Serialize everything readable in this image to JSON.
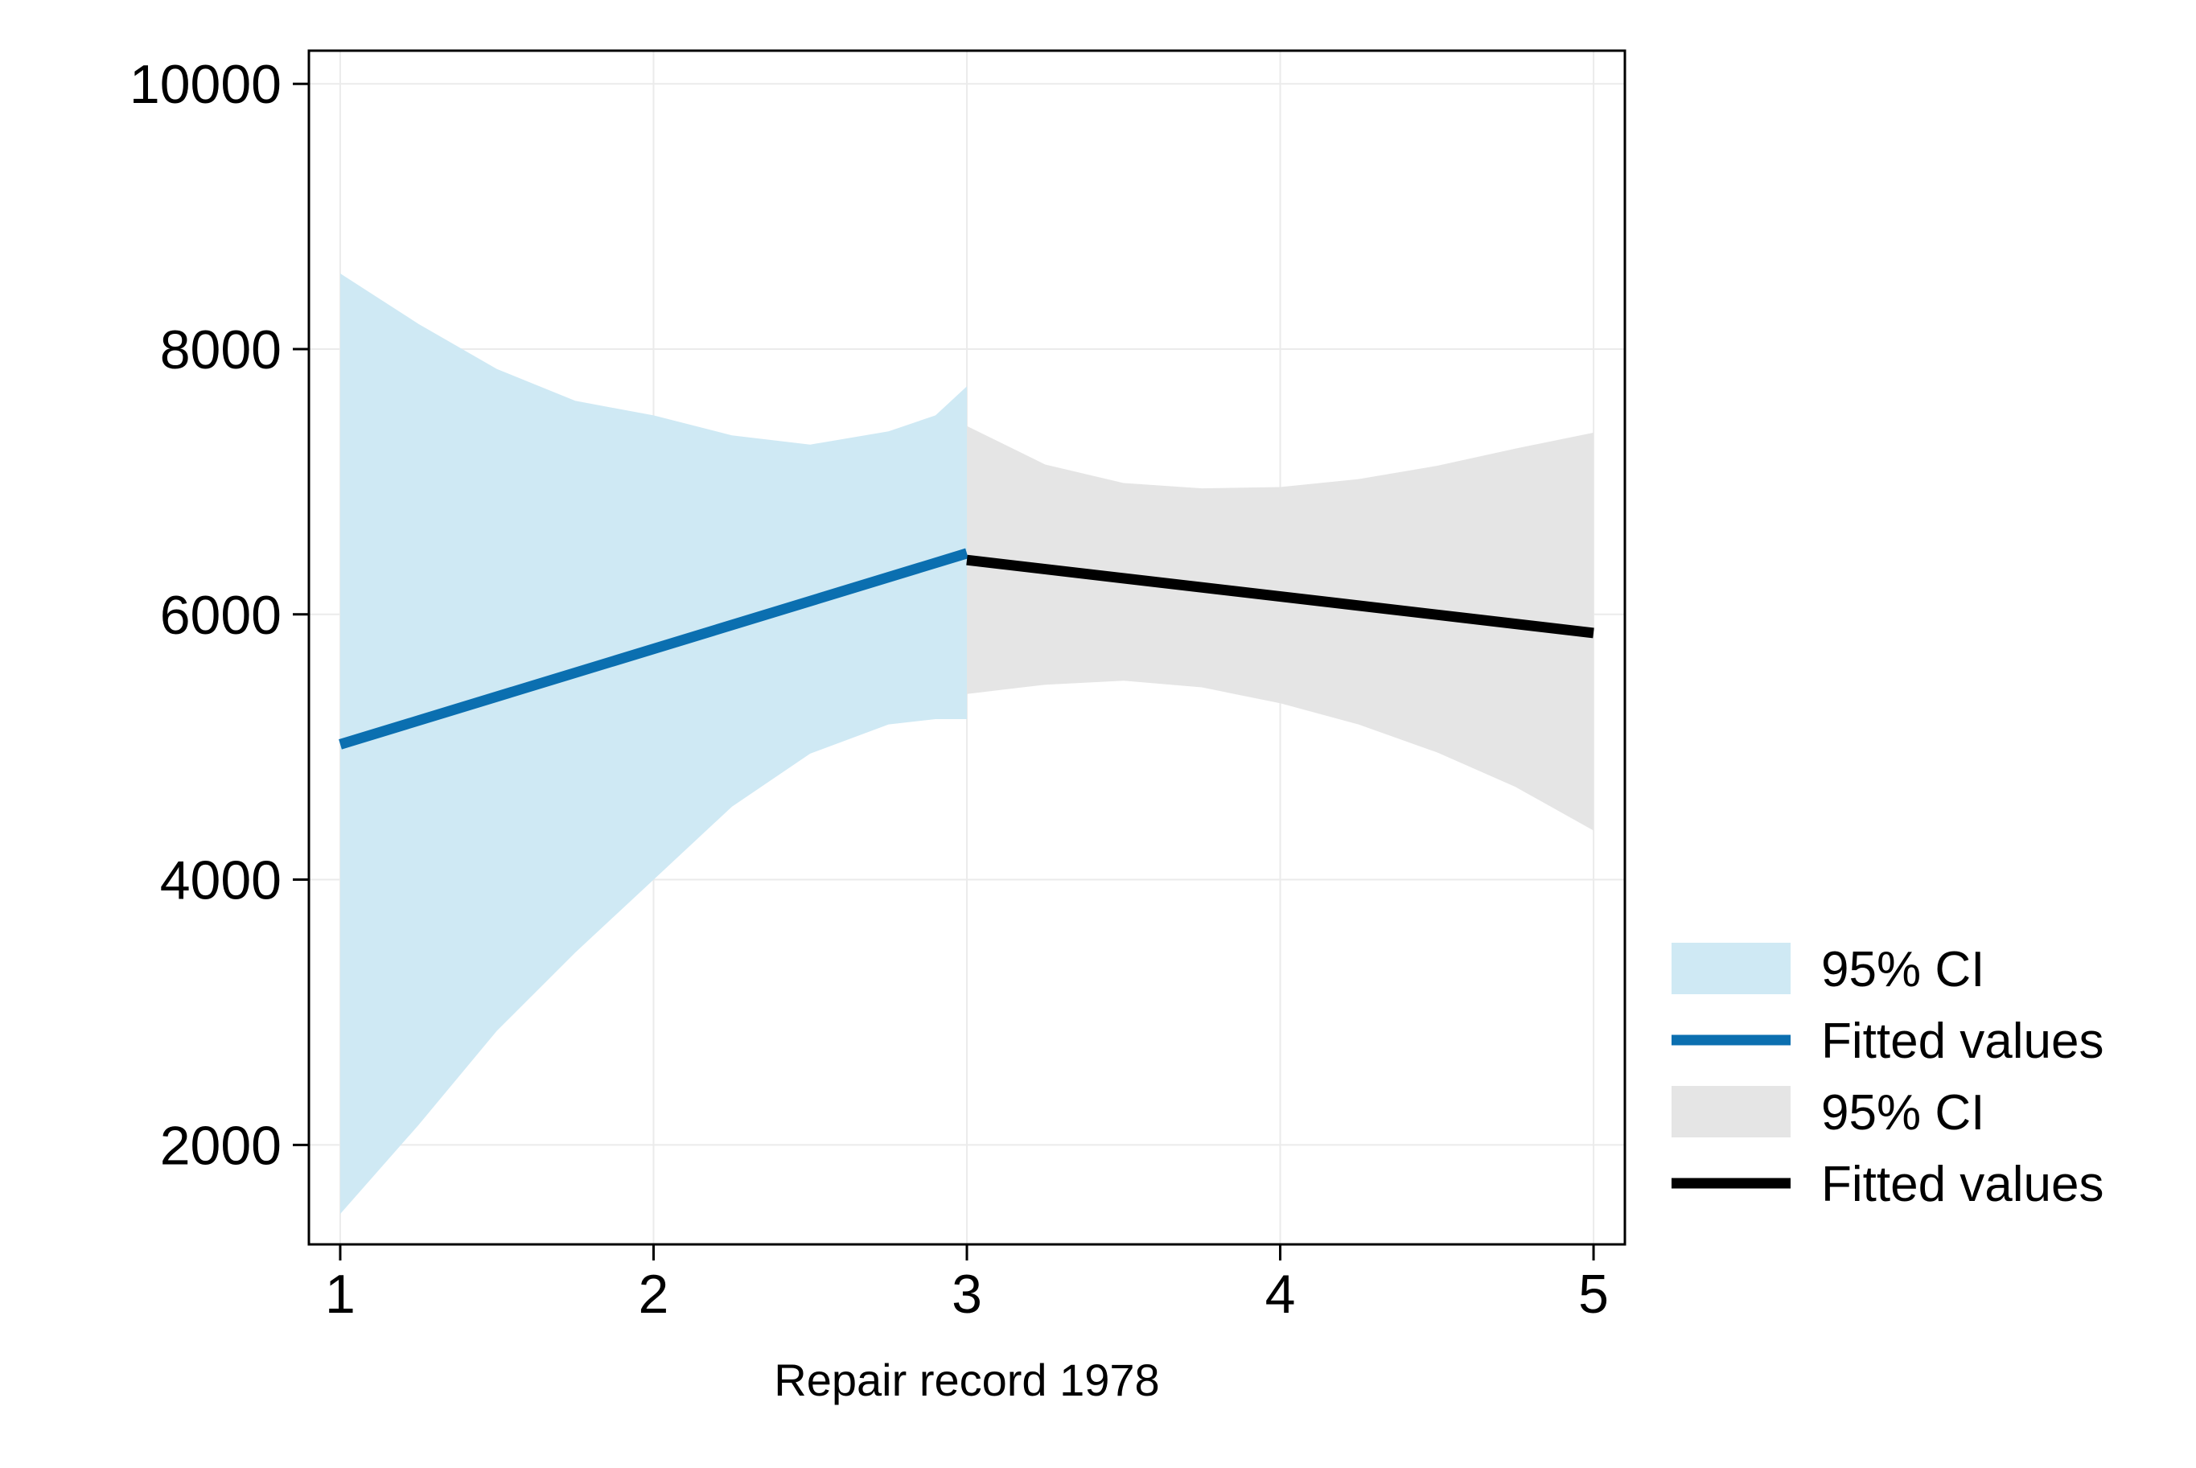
{
  "chart_data": {
    "type": "line",
    "title": "",
    "xlabel": "Repair record 1978",
    "ylabel": "",
    "xlim": [
      0.9,
      5.1
    ],
    "ylim": [
      1250,
      10250
    ],
    "xticks": [
      1,
      2,
      3,
      4,
      5
    ],
    "yticks": [
      2000,
      4000,
      6000,
      8000,
      10000
    ],
    "grid": true,
    "legend_position": "right-bottom",
    "series": [
      {
        "kind": "ci_band",
        "name": "95% CI",
        "color": "#cfe9f4",
        "x": [
          1.0,
          1.25,
          1.5,
          1.75,
          2.0,
          2.25,
          2.5,
          2.75,
          2.9,
          3.0
        ],
        "upper": [
          8570,
          8190,
          7850,
          7610,
          7500,
          7350,
          7280,
          7380,
          7500,
          7720
        ],
        "lower": [
          1480,
          2150,
          2860,
          3450,
          4000,
          4550,
          4950,
          5170,
          5210,
          5210
        ]
      },
      {
        "kind": "line",
        "name": "Fitted values",
        "color": "#0b6fb0",
        "x": [
          1.0,
          3.0
        ],
        "y": [
          5020,
          6460
        ]
      },
      {
        "kind": "ci_band",
        "name": "95% CI",
        "color": "#e5e5e5",
        "x": [
          3.0,
          3.25,
          3.5,
          3.75,
          4.0,
          4.25,
          4.5,
          4.75,
          5.0
        ],
        "upper": [
          7420,
          7130,
          6990,
          6950,
          6960,
          7020,
          7120,
          7250,
          7370
        ],
        "lower": [
          5400,
          5470,
          5500,
          5450,
          5330,
          5170,
          4960,
          4700,
          4370
        ]
      },
      {
        "kind": "line",
        "name": "Fitted values",
        "color": "#000000",
        "x": [
          3.0,
          5.0
        ],
        "y": [
          6410,
          5860
        ]
      }
    ]
  }
}
